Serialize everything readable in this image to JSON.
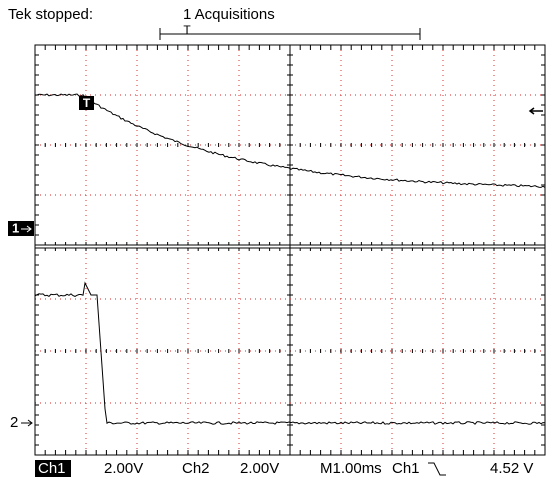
{
  "header": {
    "status": "Tek stopped:",
    "acquisitions": "1 Acquisitions",
    "trigger_marker": "T"
  },
  "markers": {
    "ch1": "1",
    "ch2": "2",
    "trigger": "T"
  },
  "status_bar": {
    "ch1": "Ch1",
    "ch1_scale": "2.00V",
    "ch2": "Ch2",
    "ch2_scale": "2.00V",
    "timebase": "M1.00ms",
    "trigger_source": "Ch1",
    "trigger_level": "4.52 V"
  }
}
